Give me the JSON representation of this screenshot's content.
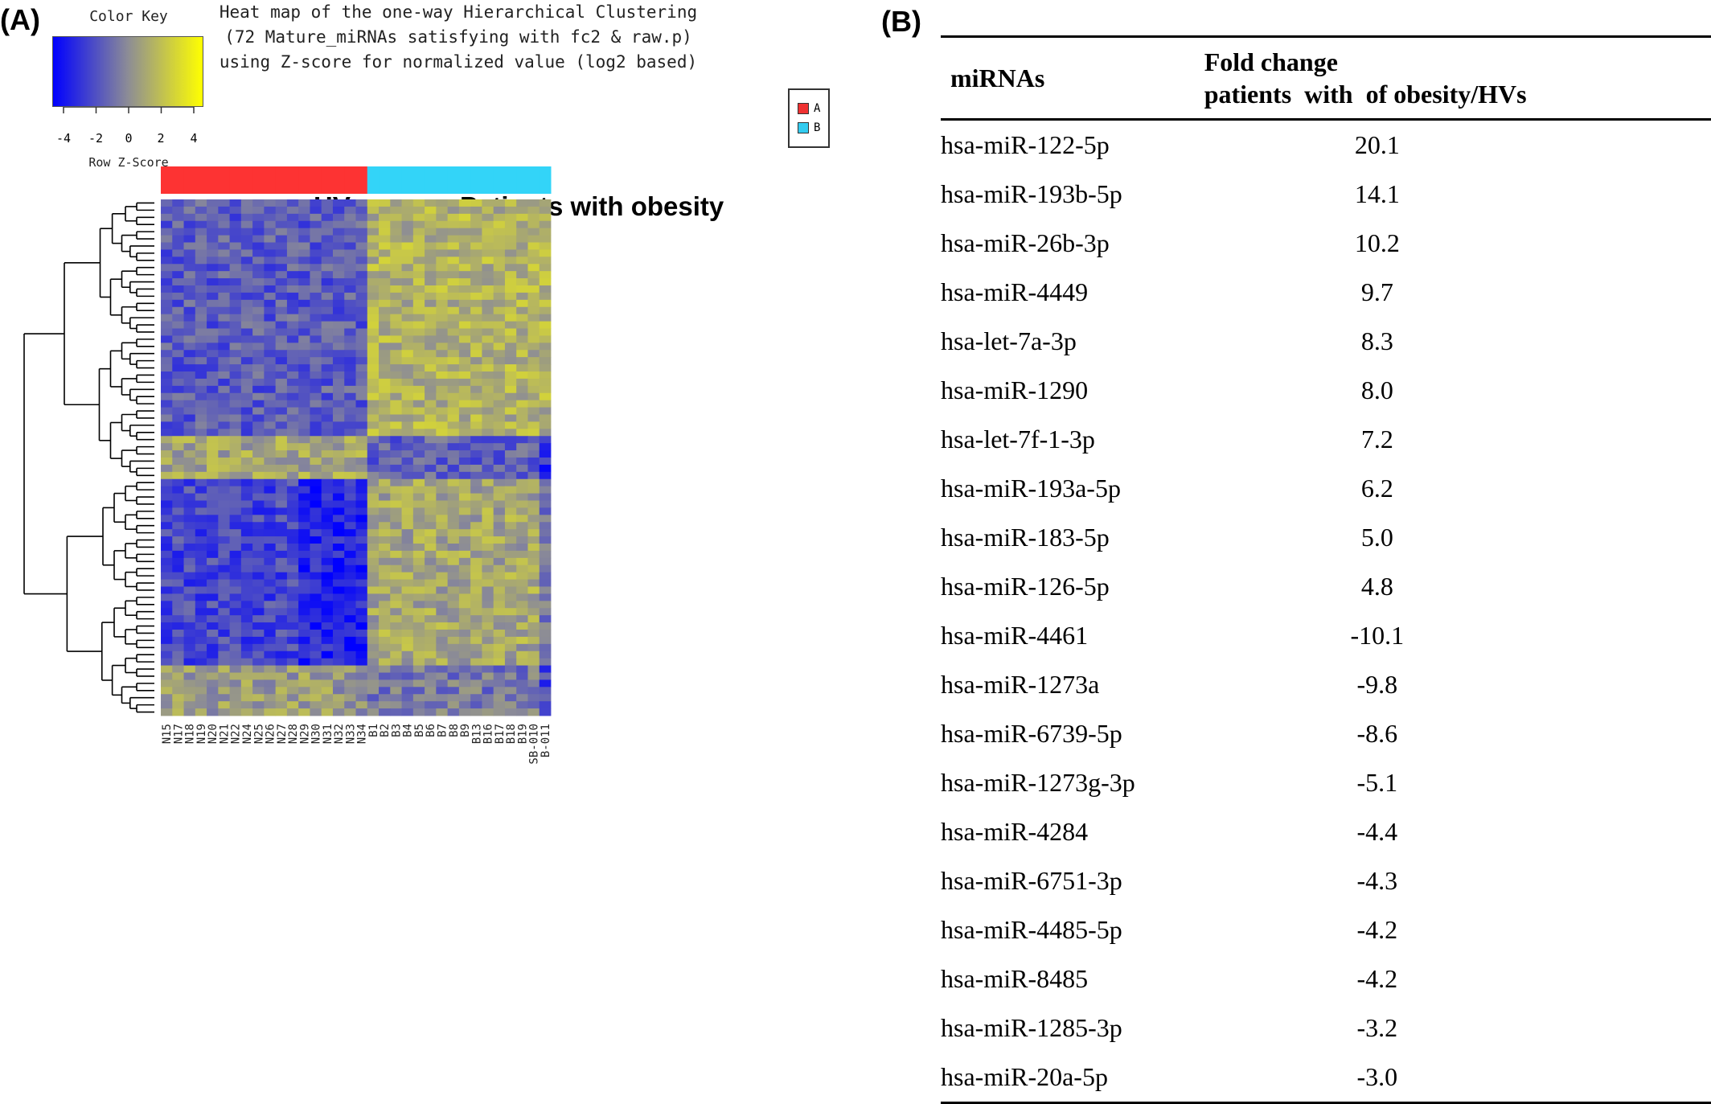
{
  "panel_a_label": "(A)",
  "panel_b_label": "(B)",
  "color_key": {
    "title": "Color Key",
    "axis_label": "Row Z-Score",
    "ticks": [
      "-4",
      "-2",
      "0",
      "2",
      "4"
    ],
    "low_color": "#0000ff",
    "mid_color": "#8c8c96",
    "high_color": "#ffff00"
  },
  "heatmap_title": [
    "Heat map of the one-way Hierarchical Clustering",
    "(72 Mature_miRNAs satisfying with fc2 & raw.p)",
    "using Z-score for normalized value (log2 based)"
  ],
  "legend": [
    {
      "label": "A",
      "color": "#f03232"
    },
    {
      "label": "B",
      "color": "#33ccf0"
    }
  ],
  "chart_data": {
    "type": "heatmap",
    "group_labels": [
      "HVs",
      "Patients with obesity"
    ],
    "group_colors": [
      "#fd3333",
      "#33d4f8"
    ],
    "columns": [
      "N15",
      "N17",
      "N18",
      "N19",
      "N20",
      "N21",
      "N22",
      "N24",
      "N25",
      "N26",
      "N27",
      "N28",
      "N29",
      "N30",
      "N31",
      "N32",
      "N33",
      "N34",
      "B1",
      "B2",
      "B3",
      "B4",
      "B5",
      "B6",
      "B7",
      "B8",
      "B9",
      "B13",
      "B16",
      "B17",
      "B18",
      "B19",
      "SB-010",
      "B-011"
    ],
    "groups": [
      "A",
      "A",
      "A",
      "A",
      "A",
      "A",
      "A",
      "A",
      "A",
      "A",
      "A",
      "A",
      "A",
      "A",
      "A",
      "A",
      "A",
      "A",
      "B",
      "B",
      "B",
      "B",
      "B",
      "B",
      "B",
      "B",
      "B",
      "B",
      "B",
      "B",
      "B",
      "B",
      "B",
      "B"
    ],
    "row_count": 72,
    "value_range": [
      -4,
      4
    ]
  },
  "table": {
    "headers": {
      "mirna": "miRNAs",
      "fc_line1": "Fold change",
      "fc_line2": "patients  with  of obesity/HVs"
    },
    "rows": [
      {
        "mirna": "hsa-miR-122-5p",
        "fc": "20.1"
      },
      {
        "mirna": "hsa-miR-193b-5p",
        "fc": "14.1"
      },
      {
        "mirna": "hsa-miR-26b-3p",
        "fc": "10.2"
      },
      {
        "mirna": "hsa-miR-4449",
        "fc": "9.7"
      },
      {
        "mirna": "hsa-let-7a-3p",
        "fc": "8.3"
      },
      {
        "mirna": "hsa-miR-1290",
        "fc": "8.0"
      },
      {
        "mirna": "hsa-let-7f-1-3p",
        "fc": "7.2"
      },
      {
        "mirna": "hsa-miR-193a-5p",
        "fc": "6.2"
      },
      {
        "mirna": "hsa-miR-183-5p",
        "fc": "5.0"
      },
      {
        "mirna": "hsa-miR-126-5p",
        "fc": "4.8"
      },
      {
        "mirna": "hsa-miR-4461",
        "fc": "-10.1"
      },
      {
        "mirna": "hsa-miR-1273a",
        "fc": "-9.8"
      },
      {
        "mirna": "hsa-miR-6739-5p",
        "fc": "-8.6"
      },
      {
        "mirna": "hsa-miR-1273g-3p",
        "fc": "-5.1"
      },
      {
        "mirna": "hsa-miR-4284",
        "fc": "-4.4"
      },
      {
        "mirna": "hsa-miR-6751-3p",
        "fc": "-4.3"
      },
      {
        "mirna": "hsa-miR-4485-5p",
        "fc": "-4.2"
      },
      {
        "mirna": "hsa-miR-8485",
        "fc": "-4.2"
      },
      {
        "mirna": "hsa-miR-1285-3p",
        "fc": "-3.2"
      },
      {
        "mirna": "hsa-miR-20a-5p",
        "fc": "-3.0"
      }
    ]
  }
}
